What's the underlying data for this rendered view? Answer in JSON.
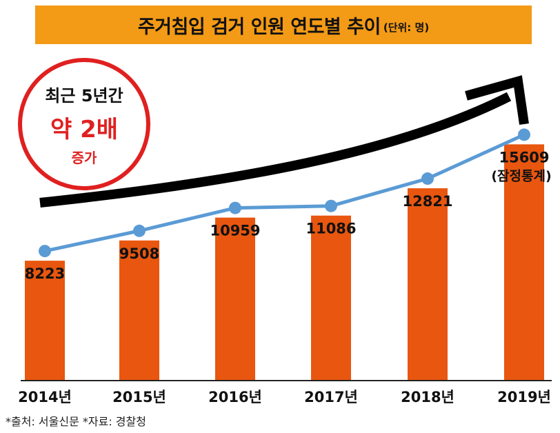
{
  "title": {
    "main": "주거침입 검거 인원 연도별 추이",
    "unit": "(단위: 명)"
  },
  "badge": {
    "line1": "최근 5년간",
    "line2": "약 2배",
    "line3": "증가"
  },
  "footer": "*출처: 서울신문 *자료: 경찰청",
  "colors": {
    "bar": "#e8560f",
    "line": "#5b9bd5",
    "title_bg": "#f39a16",
    "badge_red": "#e02020",
    "arrow": "#000000"
  },
  "chart_data": {
    "type": "bar",
    "categories": [
      "2014년",
      "2015년",
      "2016년",
      "2017년",
      "2018년",
      "2019년"
    ],
    "values": [
      8223,
      9508,
      10959,
      11086,
      12821,
      15609
    ],
    "data_labels": [
      "8223",
      "9508",
      "10959",
      "11086",
      "12821",
      "15609"
    ],
    "annotations": [
      {
        "category": "2019년",
        "text": "(잠정통계)"
      }
    ],
    "overlay_line": true,
    "trend_arrow": true,
    "ylim": [
      0,
      16500
    ],
    "grid": false,
    "legend": "none"
  }
}
